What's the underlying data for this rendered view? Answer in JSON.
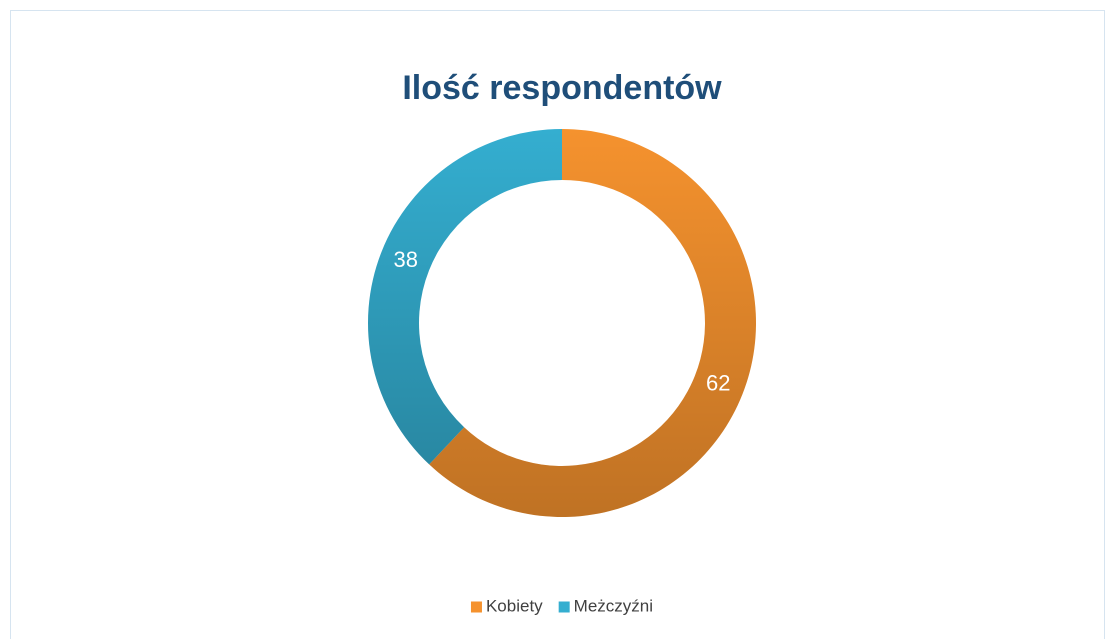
{
  "chart_data": {
    "type": "donut",
    "title": "Ilość respondentów",
    "categories": [
      "Kobiety",
      "Meżczyźni"
    ],
    "values": [
      62,
      38
    ],
    "colors": [
      "#f5922e",
      "#34aed0"
    ],
    "legend": "bottom"
  }
}
